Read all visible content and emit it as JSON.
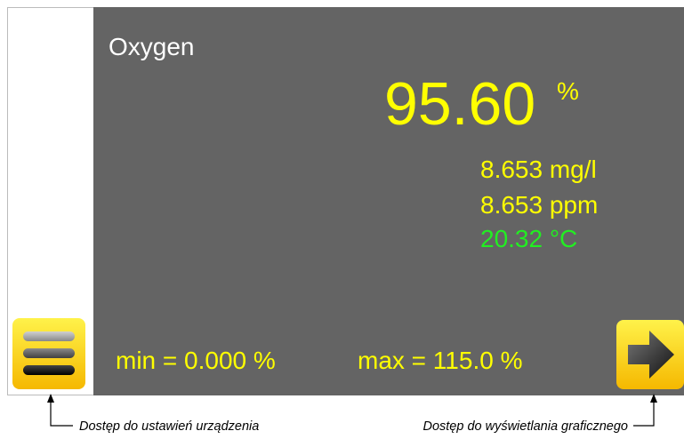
{
  "screen": {
    "parameter": "Oxygen",
    "main_value": "95.60",
    "main_unit": "%",
    "readings": [
      "8.653 mg/l",
      "8.653 ppm",
      "20.32 °C"
    ],
    "min": "min = 0.000 %",
    "max": "max = 115.0 %"
  },
  "annotations": {
    "left": "Dostęp do ustawień urządzenia",
    "right": "Dostęp do wyświetlania graficznego"
  }
}
